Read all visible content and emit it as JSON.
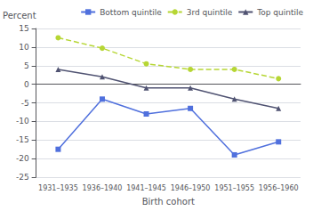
{
  "chart_data": {
    "type": "line",
    "xlabel": "Birth cohort",
    "ylabel": "Percent",
    "categories": [
      "1931–1935",
      "1936–1940",
      "1941–1945",
      "1946–1950",
      "1951–1955",
      "1956–1960"
    ],
    "series": [
      {
        "name": "Bottom quintile",
        "values": [
          -17.5,
          -4.0,
          -8.0,
          -6.5,
          -19.0,
          -15.5
        ],
        "marker": "square",
        "line_style": "solid"
      },
      {
        "name": "3rd quintile",
        "values": [
          12.5,
          9.7,
          5.5,
          4.0,
          4.0,
          1.5
        ],
        "marker": "circle",
        "line_style": "dashed"
      },
      {
        "name": "Top quintile",
        "values": [
          4.0,
          2.0,
          -1.0,
          -1.0,
          -4.0,
          -6.5
        ],
        "marker": "triangle",
        "line_style": "solid"
      }
    ],
    "ylim": [
      -25,
      15
    ],
    "yticks": [
      -25,
      -20,
      -15,
      -10,
      -5,
      0,
      5,
      10,
      15
    ],
    "grid": true,
    "legend": "upper right"
  }
}
